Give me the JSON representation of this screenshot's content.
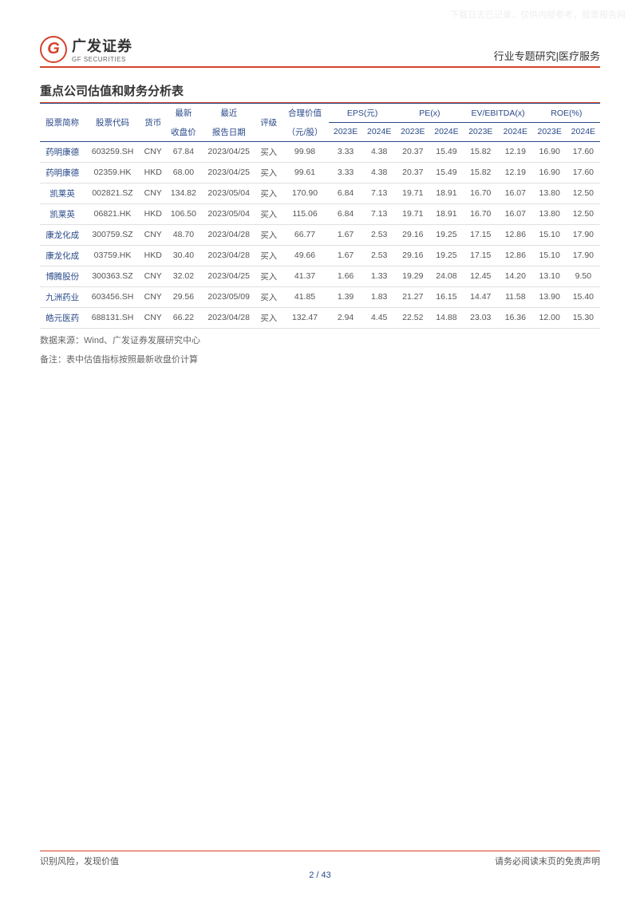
{
  "watermark": "下载日志已记录，仅供内部参考，股票报告网",
  "header": {
    "logo_letter": "G",
    "logo_cn": "广发证券",
    "logo_en": "GF SECURITIES",
    "category": "行业专题研究",
    "sep": "|",
    "subcategory": "医疗服务"
  },
  "section_title": "重点公司估值和财务分析表",
  "columns": {
    "stock_name": "股票简称",
    "stock_code": "股票代码",
    "currency": "货币",
    "latest": "最新",
    "close_price": "收盘价",
    "recent": "最近",
    "report_date": "报告日期",
    "rating": "评级",
    "fair_value": "合理价值",
    "fair_value_unit": "（元/股）",
    "eps": "EPS(元)",
    "pe": "PE(x)",
    "ev_ebitda": "EV/EBITDA(x)",
    "roe": "ROE(%)",
    "y2023e": "2023E",
    "y2024e": "2024E"
  },
  "rows": [
    {
      "name": "药明康德",
      "code": "603259.SH",
      "ccy": "CNY",
      "price": "67.84",
      "date": "2023/04/25",
      "rating": "买入",
      "fv": "99.98",
      "eps23": "3.33",
      "eps24": "4.38",
      "pe23": "20.37",
      "pe24": "15.49",
      "ev23": "15.82",
      "ev24": "12.19",
      "roe23": "16.90",
      "roe24": "17.60"
    },
    {
      "name": "药明康德",
      "code": "02359.HK",
      "ccy": "HKD",
      "price": "68.00",
      "date": "2023/04/25",
      "rating": "买入",
      "fv": "99.61",
      "eps23": "3.33",
      "eps24": "4.38",
      "pe23": "20.37",
      "pe24": "15.49",
      "ev23": "15.82",
      "ev24": "12.19",
      "roe23": "16.90",
      "roe24": "17.60"
    },
    {
      "name": "凯莱英",
      "code": "002821.SZ",
      "ccy": "CNY",
      "price": "134.82",
      "date": "2023/05/04",
      "rating": "买入",
      "fv": "170.90",
      "eps23": "6.84",
      "eps24": "7.13",
      "pe23": "19.71",
      "pe24": "18.91",
      "ev23": "16.70",
      "ev24": "16.07",
      "roe23": "13.80",
      "roe24": "12.50"
    },
    {
      "name": "凯莱英",
      "code": "06821.HK",
      "ccy": "HKD",
      "price": "106.50",
      "date": "2023/05/04",
      "rating": "买入",
      "fv": "115.06",
      "eps23": "6.84",
      "eps24": "7.13",
      "pe23": "19.71",
      "pe24": "18.91",
      "ev23": "16.70",
      "ev24": "16.07",
      "roe23": "13.80",
      "roe24": "12.50"
    },
    {
      "name": "康龙化成",
      "code": "300759.SZ",
      "ccy": "CNY",
      "price": "48.70",
      "date": "2023/04/28",
      "rating": "买入",
      "fv": "66.77",
      "eps23": "1.67",
      "eps24": "2.53",
      "pe23": "29.16",
      "pe24": "19.25",
      "ev23": "17.15",
      "ev24": "12.86",
      "roe23": "15.10",
      "roe24": "17.90"
    },
    {
      "name": "康龙化成",
      "code": "03759.HK",
      "ccy": "HKD",
      "price": "30.40",
      "date": "2023/04/28",
      "rating": "买入",
      "fv": "49.66",
      "eps23": "1.67",
      "eps24": "2.53",
      "pe23": "29.16",
      "pe24": "19.25",
      "ev23": "17.15",
      "ev24": "12.86",
      "roe23": "15.10",
      "roe24": "17.90"
    },
    {
      "name": "博腾股份",
      "code": "300363.SZ",
      "ccy": "CNY",
      "price": "32.02",
      "date": "2023/04/25",
      "rating": "买入",
      "fv": "41.37",
      "eps23": "1.66",
      "eps24": "1.33",
      "pe23": "19.29",
      "pe24": "24.08",
      "ev23": "12.45",
      "ev24": "14.20",
      "roe23": "13.10",
      "roe24": "9.50"
    },
    {
      "name": "九洲药业",
      "code": "603456.SH",
      "ccy": "CNY",
      "price": "29.56",
      "date": "2023/05/09",
      "rating": "买入",
      "fv": "41.85",
      "eps23": "1.39",
      "eps24": "1.83",
      "pe23": "21.27",
      "pe24": "16.15",
      "ev23": "14.47",
      "ev24": "11.58",
      "roe23": "13.90",
      "roe24": "15.40"
    },
    {
      "name": "皓元医药",
      "code": "688131.SH",
      "ccy": "CNY",
      "price": "66.22",
      "date": "2023/04/28",
      "rating": "买入",
      "fv": "132.47",
      "eps23": "2.94",
      "eps24": "4.45",
      "pe23": "22.52",
      "pe24": "14.88",
      "ev23": "23.03",
      "ev24": "16.36",
      "roe23": "12.00",
      "roe24": "15.30"
    }
  ],
  "source_label": "数据来源：",
  "source_text": "Wind、广发证券发展研究中心",
  "note_label": "备注：",
  "note_text": "表中估值指标按照最新收盘价计算",
  "footer": {
    "left": "识别风险，发现价值",
    "right": "请务必阅读末页的免责声明",
    "page_current": "2",
    "page_sep": " / ",
    "page_total": "43"
  }
}
